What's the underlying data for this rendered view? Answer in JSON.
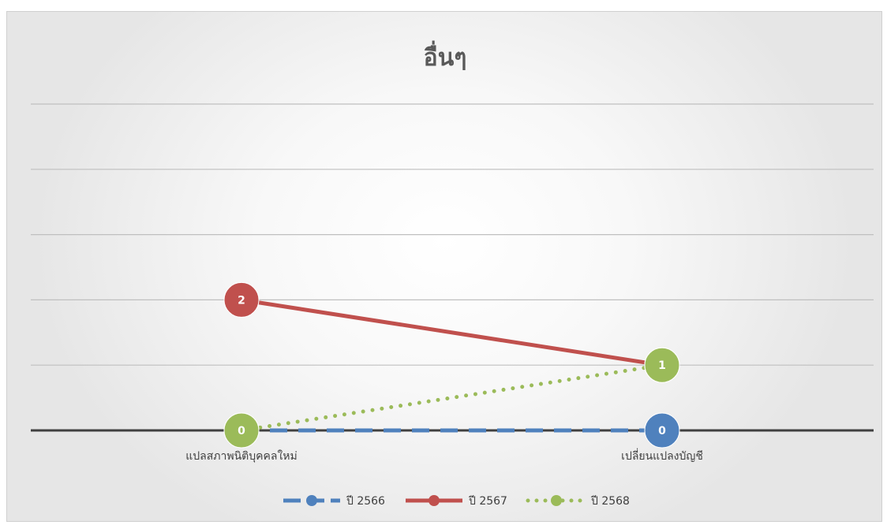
{
  "chart_data": {
    "type": "line",
    "title": "อื่นๆ",
    "categories": [
      "แปลสภาพนิติบุคคลใหม่",
      "เปลี่ยนแปลงบัญชี"
    ],
    "ylim": [
      0,
      5
    ],
    "grid": true,
    "legend": "bottom",
    "series": [
      {
        "name": "ปี 2566",
        "values": [
          0,
          0
        ],
        "color": "#4F81BD",
        "style": "dashed"
      },
      {
        "name": "ปี 2567",
        "values": [
          2,
          1
        ],
        "color": "#C0504D",
        "style": "solid"
      },
      {
        "name": "ปี 2568",
        "values": [
          0,
          1
        ],
        "color": "#9BBB59",
        "style": "dotted"
      }
    ]
  }
}
